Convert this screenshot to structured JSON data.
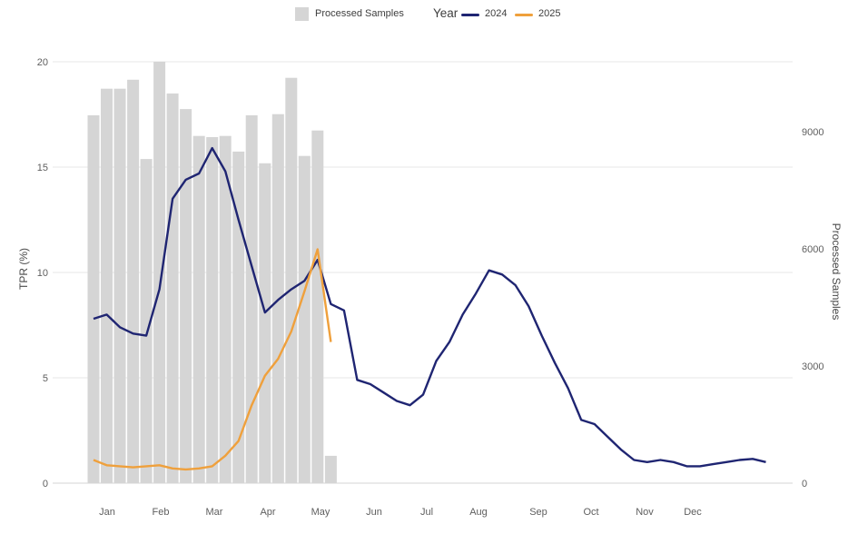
{
  "legend": {
    "bar_label": "Processed Samples",
    "year_label": "Year",
    "entries": [
      {
        "label": "2024",
        "color": "#1f2572"
      },
      {
        "label": "2025",
        "color": "#efa03c"
      }
    ]
  },
  "axes": {
    "left_title": "TPR (%)",
    "right_title": "Processed Samples",
    "left_ticks": [
      0,
      5,
      10,
      15,
      20
    ],
    "right_ticks": [
      0,
      3000,
      6000,
      9000
    ],
    "months": [
      "Jan",
      "Feb",
      "Mar",
      "Apr",
      "May",
      "Jun",
      "Jul",
      "Aug",
      "Sep",
      "Oct",
      "Nov",
      "Dec"
    ]
  },
  "chart_data": {
    "type": "combo-bar-line",
    "title": "",
    "x_unit": "epidemiological week (1-52)",
    "left_axis": {
      "label": "TPR (%)",
      "range": [
        0,
        20
      ],
      "ticks": [
        0,
        5,
        10,
        15,
        20
      ],
      "grid": true
    },
    "right_axis": {
      "label": "Processed Samples",
      "range": [
        0,
        10800
      ],
      "ticks": [
        0,
        3000,
        6000,
        9000
      ]
    },
    "bars": {
      "name": "Processed Samples",
      "axis": "right",
      "color": "#d5d5d5",
      "start_week": 1,
      "values": [
        9420,
        10100,
        10100,
        10330,
        8300,
        10790,
        9980,
        9580,
        8890,
        8860,
        8890,
        8490,
        9420,
        8190,
        9450,
        10380,
        8380,
        9030,
        700
      ]
    },
    "series": [
      {
        "name": "2024",
        "axis": "left",
        "color": "#1f2572",
        "start_week": 1,
        "values": [
          7.8,
          8.0,
          7.4,
          7.1,
          7.0,
          9.2,
          13.5,
          14.4,
          14.7,
          15.9,
          14.8,
          12.5,
          10.3,
          8.1,
          8.7,
          9.2,
          9.6,
          10.6,
          8.5,
          8.2,
          4.9,
          4.7,
          4.3,
          3.9,
          3.7,
          4.2,
          5.8,
          6.7,
          8.0,
          9.0,
          10.1,
          9.9,
          9.4,
          8.4,
          7.0,
          5.7,
          4.5,
          3.0,
          2.8,
          2.2,
          1.6,
          1.1,
          1.0,
          1.1,
          1.0,
          0.8,
          0.8,
          0.9,
          1.0,
          1.1,
          1.15,
          1.0
        ]
      },
      {
        "name": "2025",
        "axis": "left",
        "color": "#efa03c",
        "start_week": 1,
        "values": [
          1.1,
          0.85,
          0.8,
          0.75,
          0.8,
          0.85,
          0.7,
          0.65,
          0.7,
          0.8,
          1.3,
          2.0,
          3.7,
          5.1,
          5.9,
          7.2,
          9.1,
          11.1,
          6.7
        ]
      }
    ],
    "legend_position": "top-center"
  }
}
